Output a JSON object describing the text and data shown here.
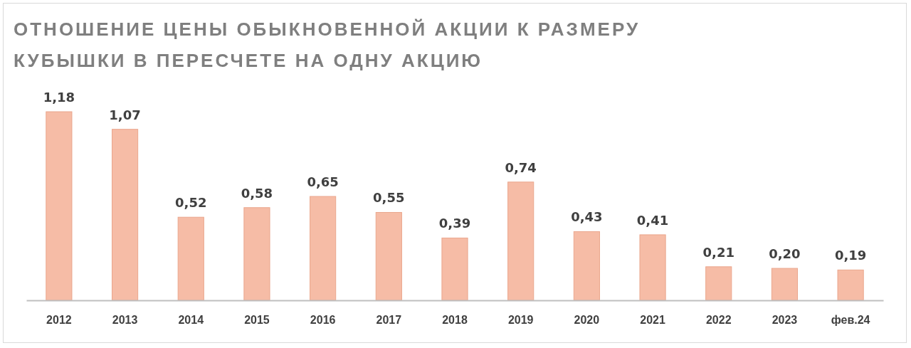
{
  "chart_data": {
    "type": "bar",
    "title": "ОТНОШЕНИЕ ЦЕНЫ ОБЫКНОВЕННОЙ АКЦИИ К РАЗМЕРУ КУБЫШКИ В ПЕРЕСЧЕТЕ НА ОДНУ АКЦИЮ",
    "categories": [
      "2012",
      "2013",
      "2014",
      "2015",
      "2016",
      "2017",
      "2018",
      "2019",
      "2020",
      "2021",
      "2022",
      "2023",
      "фев.24"
    ],
    "values": [
      1.18,
      1.07,
      0.52,
      0.58,
      0.65,
      0.55,
      0.39,
      0.74,
      0.43,
      0.41,
      0.21,
      0.2,
      0.19
    ],
    "value_labels": [
      "1,18",
      "1,07",
      "0,52",
      "0,58",
      "0,65",
      "0,55",
      "0,39",
      "0,74",
      "0,43",
      "0,41",
      "0,21",
      "0,20",
      "0,19"
    ],
    "color": "#f6bca6"
  }
}
